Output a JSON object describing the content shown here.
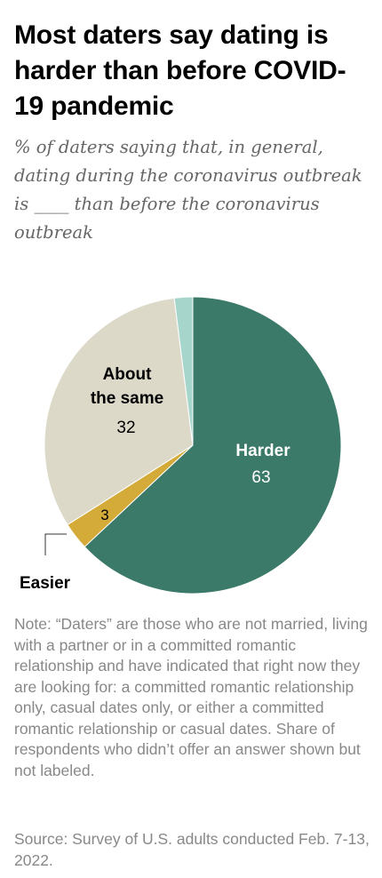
{
  "header": {
    "title": "Most daters say dating is harder than before COVID-19 pandemic",
    "subtitle": "% of daters saying that, in general, dating during the coronavirus outbreak is ____ than before the coronavirus outbreak"
  },
  "chart_data": {
    "type": "pie",
    "slices": [
      {
        "label": "Harder",
        "value": 63,
        "value_label": "63",
        "color": "#3b7a68",
        "label_color": "#ffffff"
      },
      {
        "label": "Easier",
        "value": 3,
        "value_label": "3",
        "color": "#d4aa38",
        "label_color": "#000000"
      },
      {
        "label": "About the same",
        "value": 32,
        "value_label": "32",
        "color": "#dcd9c9",
        "label_color": "#000000"
      },
      {
        "label": "",
        "value": 2,
        "value_label": "",
        "color": "#a6d6cb",
        "label_color": "#000000"
      }
    ],
    "start_angle_deg": 0,
    "direction": "clockwise"
  },
  "footer": {
    "note": "Note: “Daters” are those who are not married, living with a partner or in a committed romantic relationship and have indicated that right now they are looking for: a committed romantic relationship only, casual dates only, or either a committed romantic relationship or casual dates. Share of respondents who didn’t offer an answer shown but not labeled.",
    "source": "Source: Survey of U.S. adults conducted Feb. 7-13, 2022."
  }
}
